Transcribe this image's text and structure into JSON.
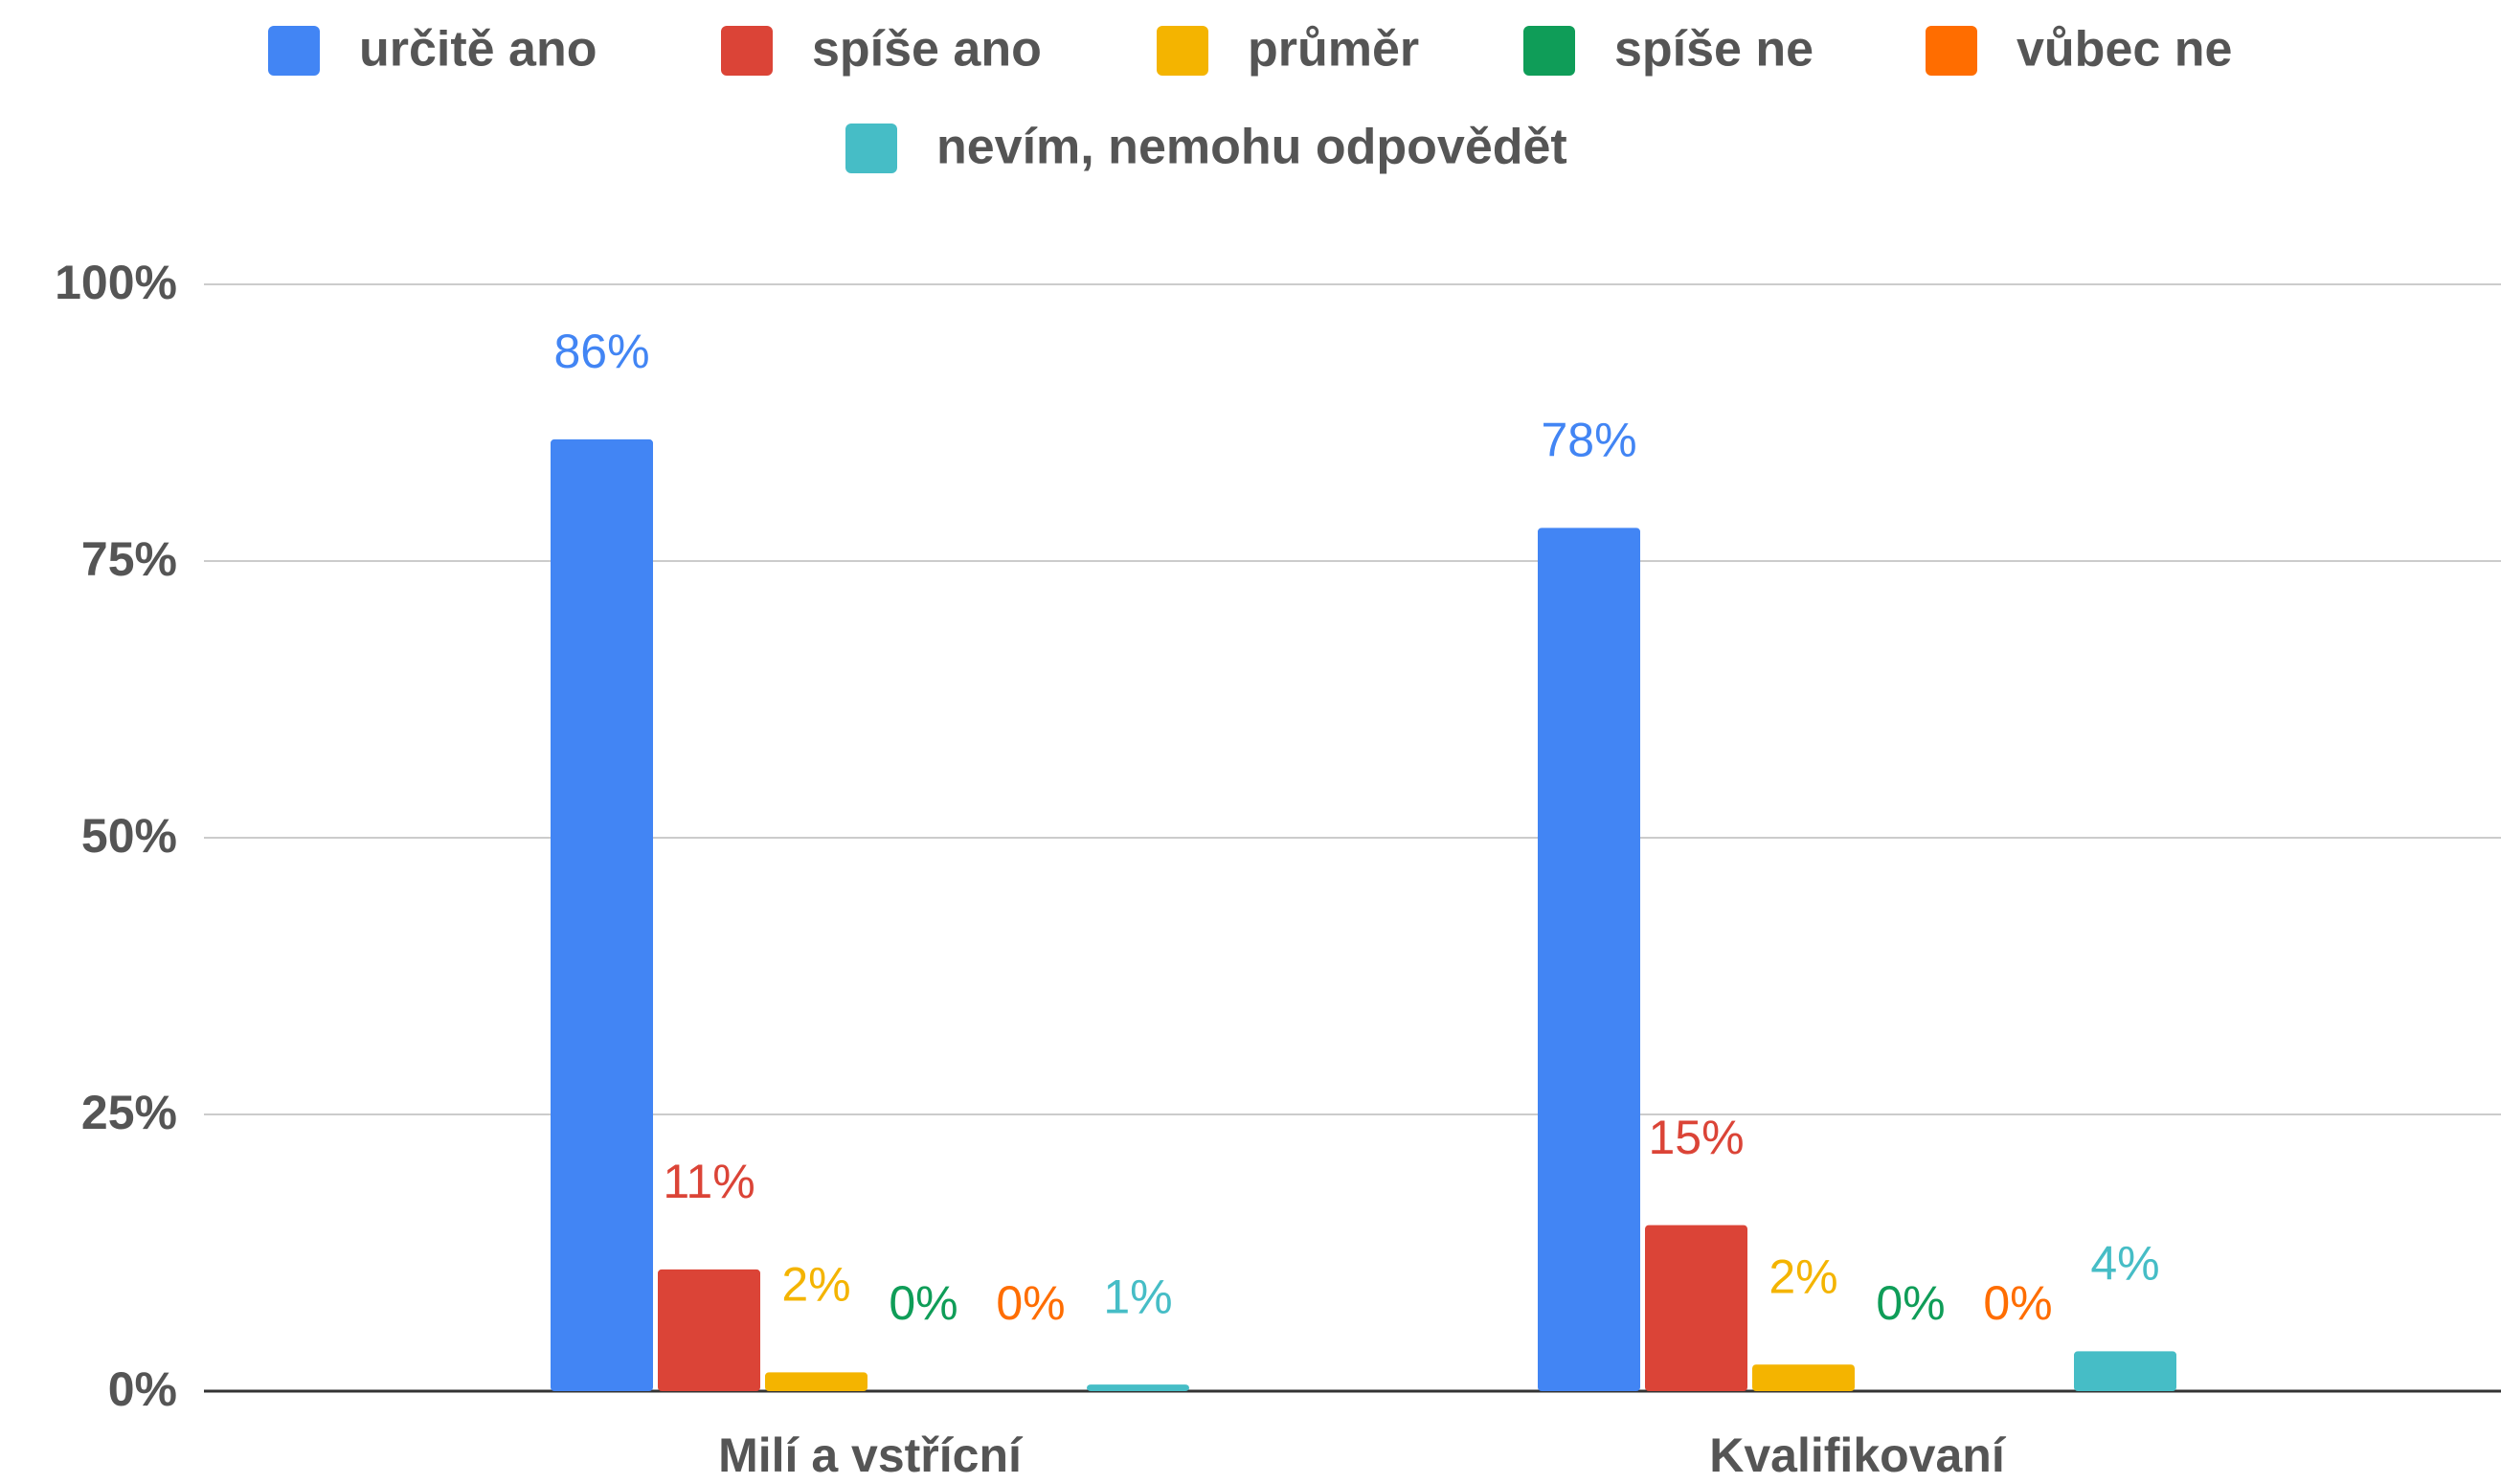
{
  "chart_data": {
    "type": "bar",
    "categories": [
      "Milí a vstřícní",
      "Kvalifikovaní"
    ],
    "series": [
      {
        "name": "určitě ano",
        "color": "#4285f4",
        "values": [
          86,
          78
        ],
        "value_labels": [
          "86%",
          "78%"
        ]
      },
      {
        "name": "spíše ano",
        "color": "#db4437",
        "values": [
          11,
          15
        ],
        "value_labels": [
          "11%",
          "15%"
        ]
      },
      {
        "name": "průměr",
        "color": "#f4b400",
        "values": [
          1.7,
          2.4
        ],
        "value_labels": [
          "2%",
          "2%"
        ]
      },
      {
        "name": "spíše ne",
        "color": "#0f9d58",
        "values": [
          0,
          0
        ],
        "value_labels": [
          "0%",
          "0%"
        ]
      },
      {
        "name": "vůbec ne",
        "color": "#ff6d00",
        "values": [
          0,
          0
        ],
        "value_labels": [
          "0%",
          "0%"
        ]
      },
      {
        "name": "nevím, nemohu odpovědět",
        "color": "#46bdc6",
        "values": [
          0.6,
          3.6
        ],
        "value_labels": [
          "1%",
          "4%"
        ]
      }
    ],
    "ylim": [
      0,
      100
    ],
    "yticks": [
      {
        "value": 0,
        "label": "0%"
      },
      {
        "value": 25,
        "label": "25%"
      },
      {
        "value": 50,
        "label": "50%"
      },
      {
        "value": 75,
        "label": "75%"
      },
      {
        "value": 100,
        "label": "100%"
      }
    ],
    "grid": true,
    "legend": "top"
  }
}
